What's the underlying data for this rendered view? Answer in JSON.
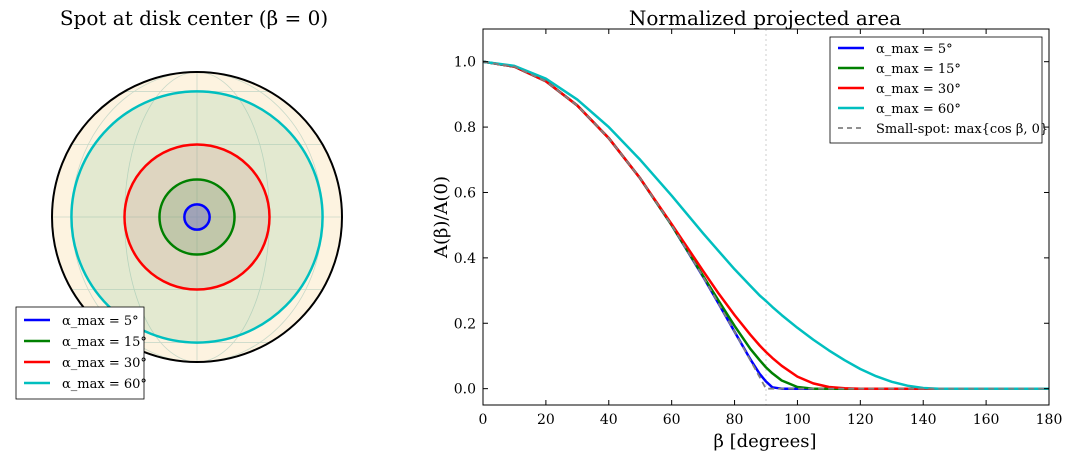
{
  "chart_data": [
    {
      "type": "disk",
      "title": "Spot at disk center (β = 0)",
      "disk": {
        "face_color": "#fdf3e0",
        "edge_color": "#000000",
        "grid": true
      },
      "series": [
        {
          "name": "α_max = 5°",
          "label": "α",
          "sub": "max",
          "deg": 5,
          "color": "#0000ff"
        },
        {
          "name": "α_max = 15°",
          "label": "α",
          "sub": "max",
          "deg": 15,
          "color": "#008000"
        },
        {
          "name": "α_max = 30°",
          "label": "α",
          "sub": "max",
          "deg": 30,
          "color": "#ff0000"
        },
        {
          "name": "α_max = 60°",
          "label": "α",
          "sub": "max",
          "deg": 60,
          "color": "#00bfbf"
        }
      ],
      "legend": "lower-left"
    },
    {
      "type": "line",
      "title": "Normalized projected area",
      "xlabel": "β [degrees]",
      "ylabel": "A(β)/A(0)",
      "xlim": [
        0,
        180
      ],
      "ylim": [
        -0.05,
        1.1
      ],
      "xticks": [
        0,
        20,
        40,
        60,
        80,
        100,
        120,
        140,
        160,
        180
      ],
      "yticks": [
        0.0,
        0.2,
        0.4,
        0.6,
        0.8,
        1.0
      ],
      "ytick_labels": [
        "0.0",
        "0.2",
        "0.4",
        "0.6",
        "0.8",
        "1.0"
      ],
      "vline": {
        "x": 90,
        "style": "dotted",
        "color": "#cccccc"
      },
      "x": [
        0,
        10,
        20,
        30,
        40,
        50,
        60,
        70,
        75,
        80,
        85,
        88,
        90,
        92,
        95,
        100,
        105,
        110,
        115,
        120,
        125,
        130,
        135,
        140,
        145,
        150,
        160,
        170,
        180
      ],
      "series": [
        {
          "name": "α_max = 5°",
          "color": "#0000ff",
          "dash": false,
          "values": [
            1.0,
            0.985,
            0.94,
            0.866,
            0.766,
            0.643,
            0.5,
            0.342,
            0.259,
            0.174,
            0.09,
            0.045,
            0.022,
            0.004,
            0.0,
            0.0,
            0.0,
            0.0,
            0.0,
            0.0,
            0.0,
            0.0,
            0.0,
            0.0,
            0.0,
            0.0,
            0.0,
            0.0,
            0.0
          ]
        },
        {
          "name": "α_max = 15°",
          "color": "#008000",
          "dash": false,
          "values": [
            1.0,
            0.985,
            0.94,
            0.866,
            0.766,
            0.643,
            0.5,
            0.345,
            0.268,
            0.192,
            0.122,
            0.087,
            0.065,
            0.047,
            0.025,
            0.005,
            0.0,
            0.0,
            0.0,
            0.0,
            0.0,
            0.0,
            0.0,
            0.0,
            0.0,
            0.0,
            0.0,
            0.0,
            0.0
          ]
        },
        {
          "name": "α_max = 30°",
          "color": "#ff0000",
          "dash": false,
          "values": [
            1.0,
            0.985,
            0.94,
            0.866,
            0.766,
            0.643,
            0.503,
            0.36,
            0.29,
            0.225,
            0.165,
            0.132,
            0.112,
            0.094,
            0.07,
            0.037,
            0.016,
            0.005,
            0.001,
            0.0,
            0.0,
            0.0,
            0.0,
            0.0,
            0.0,
            0.0,
            0.0,
            0.0,
            0.0
          ]
        },
        {
          "name": "α_max = 60°",
          "color": "#00bfbf",
          "dash": false,
          "values": [
            1.0,
            0.987,
            0.948,
            0.884,
            0.8,
            0.7,
            0.59,
            0.475,
            0.42,
            0.365,
            0.315,
            0.285,
            0.268,
            0.25,
            0.225,
            0.186,
            0.15,
            0.117,
            0.087,
            0.06,
            0.038,
            0.021,
            0.009,
            0.002,
            0.0,
            0.0,
            0.0,
            0.0,
            0.0
          ]
        },
        {
          "name": "Small-spot: max{cos β, 0}",
          "color": "#808080",
          "dash": true,
          "values": [
            1.0,
            0.985,
            0.94,
            0.866,
            0.766,
            0.643,
            0.5,
            0.342,
            0.259,
            0.174,
            0.087,
            0.035,
            0.0,
            0.0,
            0.0,
            0.0,
            0.0,
            0.0,
            0.0,
            0.0,
            0.0,
            0.0,
            0.0,
            0.0,
            0.0,
            0.0,
            0.0,
            0.0,
            0.0
          ]
        }
      ],
      "legend": "top-right"
    }
  ]
}
